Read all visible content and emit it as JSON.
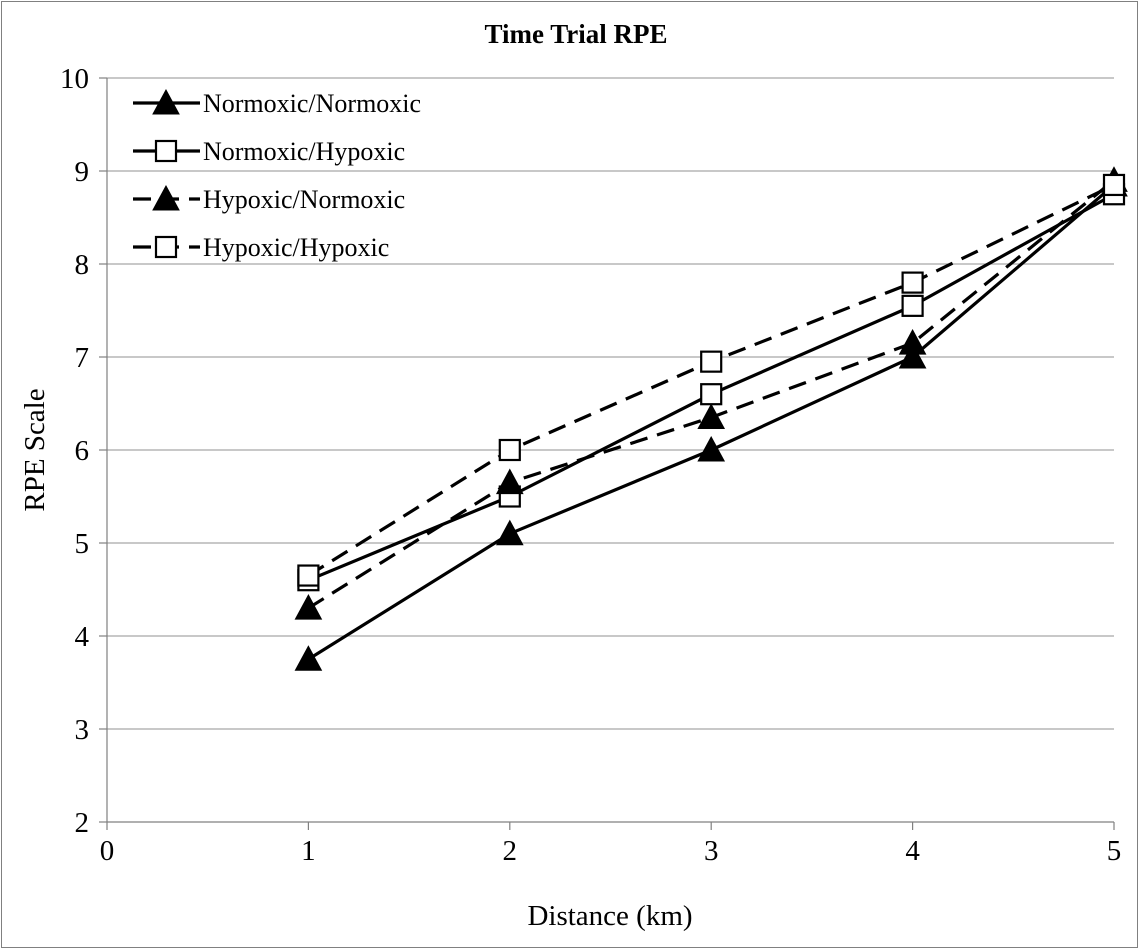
{
  "chart_data": {
    "type": "line",
    "title": "Time Trial RPE",
    "xlabel": "Distance (km)",
    "ylabel": "RPE Scale",
    "xlim": [
      0,
      5
    ],
    "ylim": [
      2,
      10
    ],
    "x_ticks": [
      "0",
      "1",
      "2",
      "3",
      "4",
      "5"
    ],
    "y_ticks": [
      "2",
      "3",
      "4",
      "5",
      "6",
      "7",
      "8",
      "9",
      "10"
    ],
    "grid": "horizontal",
    "legend_position": "top-left",
    "x": [
      1,
      2,
      3,
      4,
      5
    ],
    "series": [
      {
        "name": "Normoxic/Normoxic",
        "values": [
          3.75,
          5.1,
          6.0,
          7.0,
          8.85
        ],
        "line": "solid",
        "marker": "filled-triangle"
      },
      {
        "name": "Normoxic/Hypoxic",
        "values": [
          4.6,
          5.5,
          6.6,
          7.55,
          8.75
        ],
        "line": "solid",
        "marker": "open-square"
      },
      {
        "name": "Hypoxic/Normoxic",
        "values": [
          4.3,
          5.65,
          6.35,
          7.15,
          8.9
        ],
        "line": "dashed",
        "marker": "filled-triangle"
      },
      {
        "name": "Hypoxic/Hypoxic",
        "values": [
          4.65,
          6.0,
          6.95,
          7.8,
          8.85
        ],
        "line": "dashed",
        "marker": "open-square"
      }
    ],
    "colors": {
      "line": "#000000",
      "grid": "#a6a6a6",
      "axis": "#808080",
      "marker_fill_open": "#ffffff"
    }
  }
}
